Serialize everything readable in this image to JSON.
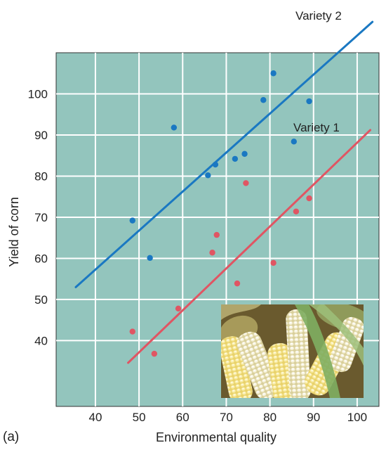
{
  "panel_label": "(a)",
  "colors": {
    "plot_background": "#93c5bd",
    "grid": "#ffffff",
    "variety_1": "#e05563",
    "variety_2": "#1a78c2"
  },
  "photo": {
    "subject": "ears of yellow and white corn with green husks"
  },
  "chart_data": {
    "type": "scatter",
    "title": "",
    "xlabel": "Environmental quality",
    "ylabel": "Yield of corn",
    "xlim": [
      31,
      105
    ],
    "ylim": [
      24,
      110
    ],
    "xticks": [
      40,
      50,
      60,
      70,
      80,
      90,
      100
    ],
    "yticks": [
      40,
      50,
      60,
      70,
      80,
      90,
      100
    ],
    "grid": true,
    "series": [
      {
        "name": "Variety 2",
        "color": "#1a78c2",
        "points": [
          {
            "x": 48.5,
            "y": 69.2
          },
          {
            "x": 52.5,
            "y": 60.1
          },
          {
            "x": 58.0,
            "y": 91.8
          },
          {
            "x": 65.8,
            "y": 80.2
          },
          {
            "x": 67.5,
            "y": 82.8
          },
          {
            "x": 72.0,
            "y": 84.2
          },
          {
            "x": 74.2,
            "y": 85.4
          },
          {
            "x": 78.5,
            "y": 98.5
          },
          {
            "x": 80.8,
            "y": 105.0
          },
          {
            "x": 85.5,
            "y": 88.4
          },
          {
            "x": 89.0,
            "y": 98.2
          }
        ],
        "trend_line": {
          "x": [
            35.5,
            103.5
          ],
          "y": [
            53.0,
            117.5
          ]
        }
      },
      {
        "name": "Variety 1",
        "color": "#e05563",
        "points": [
          {
            "x": 48.5,
            "y": 42.2
          },
          {
            "x": 53.5,
            "y": 36.8
          },
          {
            "x": 59.0,
            "y": 47.8
          },
          {
            "x": 66.8,
            "y": 61.4
          },
          {
            "x": 67.8,
            "y": 65.7
          },
          {
            "x": 72.5,
            "y": 53.9
          },
          {
            "x": 74.5,
            "y": 78.3
          },
          {
            "x": 80.8,
            "y": 58.9
          },
          {
            "x": 86.0,
            "y": 71.4
          },
          {
            "x": 89.0,
            "y": 74.6
          }
        ],
        "trend_line": {
          "x": [
            47.5,
            103.0
          ],
          "y": [
            34.6,
            91.2
          ]
        }
      }
    ]
  }
}
